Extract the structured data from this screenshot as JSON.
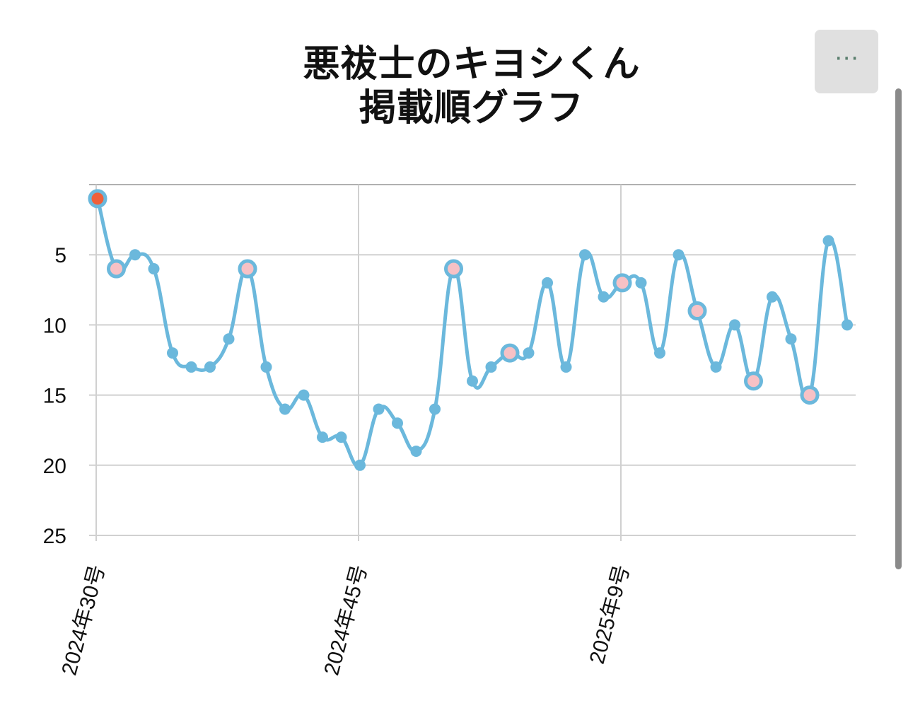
{
  "title_line1": "悪祓士のキヨシくん",
  "title_line2": "掲載順グラフ",
  "menu_label": "⋯",
  "colors": {
    "line": "#6bb8dc",
    "highlight_fill": "#f7c1c5",
    "first_point": "#f0603a",
    "grid": "#d0d0d0",
    "axis": "#b0b0b0"
  },
  "chart_data": {
    "type": "line",
    "title": "悪祓士のキヨシくん 掲載順グラフ",
    "xlabel": "",
    "ylabel": "",
    "y_reversed": true,
    "ylim": [
      0,
      25
    ],
    "yticks": [
      5,
      10,
      15,
      20,
      25
    ],
    "xtick_labels": [
      {
        "index": 0,
        "label": "2024年30号"
      },
      {
        "index": 14,
        "label": "2024年45号"
      },
      {
        "index": 28,
        "label": "2025年9号"
      }
    ],
    "values": [
      1,
      6,
      5,
      6,
      12,
      13,
      13,
      11,
      6,
      13,
      16,
      15,
      18,
      18,
      20,
      16,
      17,
      19,
      16,
      6,
      14,
      13,
      12,
      12,
      7,
      13,
      5,
      8,
      7,
      7,
      12,
      5,
      9,
      13,
      10,
      14,
      8,
      11,
      15,
      4,
      10
    ],
    "highlighted_indices": [
      1,
      8,
      19,
      22,
      28,
      32,
      35,
      38
    ],
    "first_point_index": 0,
    "grid": true
  }
}
